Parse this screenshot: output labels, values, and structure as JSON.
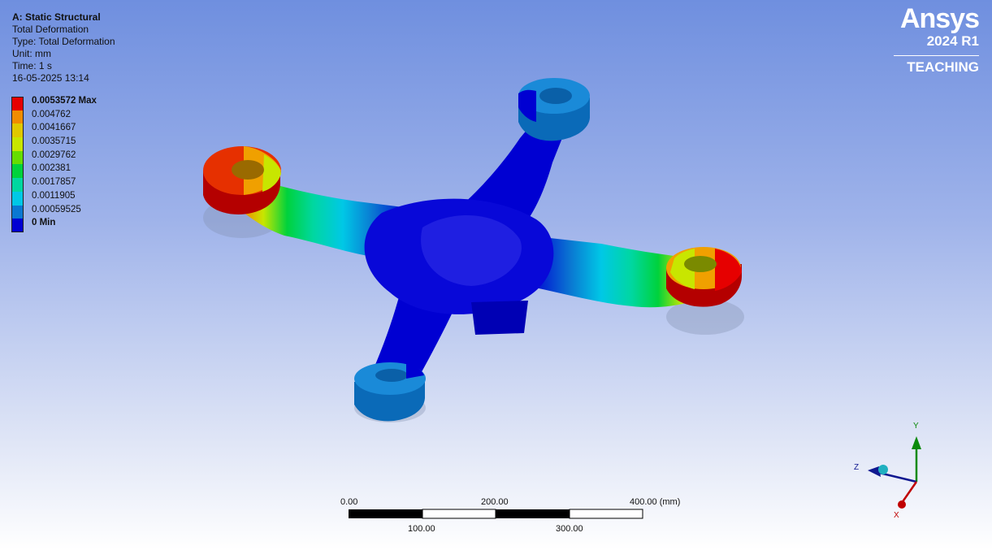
{
  "details": {
    "title": "A: Static Structural",
    "result": "Total Deformation",
    "type": "Type: Total Deformation",
    "unit": "Unit: mm",
    "time": "Time: 1 s",
    "timestamp": "16-05-2025 13:14"
  },
  "legend": [
    {
      "label": "0.0053572 Max",
      "color": "#e60000",
      "bold": true
    },
    {
      "label": "0.004762",
      "color": "#f08c00",
      "bold": false
    },
    {
      "label": "0.0041667",
      "color": "#e0c800",
      "bold": false
    },
    {
      "label": "0.0035715",
      "color": "#c8e600",
      "bold": false
    },
    {
      "label": "0.0029762",
      "color": "#66dd00",
      "bold": false
    },
    {
      "label": "0.002381",
      "color": "#00d23c",
      "bold": false
    },
    {
      "label": "0.0017857",
      "color": "#00d7a0",
      "bold": false
    },
    {
      "label": "0.0011905",
      "color": "#00c8e6",
      "bold": false
    },
    {
      "label": "0.00059525",
      "color": "#0a78d2",
      "bold": false
    },
    {
      "label": "0 Min",
      "color": "#0000d2",
      "bold": true
    }
  ],
  "logo": {
    "brand": "Ansys",
    "version": "2024 R1",
    "license": "TEACHING"
  },
  "scale_bar": {
    "top_labels": [
      "0.00",
      "200.00",
      "400.00 (mm)"
    ],
    "bottom_labels": [
      "100.00",
      "300.00"
    ]
  },
  "triad": {
    "x": "X",
    "y": "Y",
    "z": "Z"
  }
}
